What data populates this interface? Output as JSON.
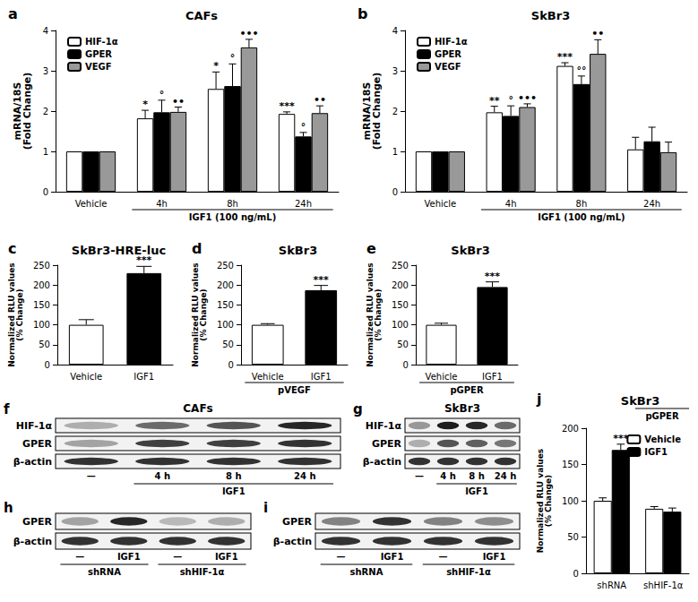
{
  "chart_data": [
    {
      "panel": "a",
      "type": "bar",
      "title": "CAFs",
      "y_label": "mRNA/18S\n(Fold Change)",
      "categories": [
        "Vehicle",
        "4h",
        "8h",
        "24h"
      ],
      "annotations": [
        {
          "text": "IGF1 (100 ng/mL)",
          "from": "4h",
          "to": "24h"
        }
      ],
      "series": [
        {
          "name": "HIF-1α",
          "color": "#ffffff",
          "values": [
            1,
            1.82,
            2.55,
            1.93
          ],
          "errors": [
            0,
            0.2,
            0.42,
            0.05
          ],
          "significance": [
            null,
            "*",
            "*",
            "***"
          ]
        },
        {
          "name": "GPER",
          "color": "#000000",
          "values": [
            1,
            1.97,
            2.62,
            1.37
          ],
          "errors": [
            0,
            0.3,
            0.55,
            0.1
          ],
          "significance": [
            null,
            "°",
            "°",
            "°"
          ]
        },
        {
          "name": "VEGF",
          "color": "#999999",
          "values": [
            1,
            1.98,
            3.58,
            1.95
          ],
          "errors": [
            0,
            0.12,
            0.2,
            0.18
          ],
          "significance": [
            null,
            "••",
            "•••",
            "••"
          ]
        }
      ],
      "ylim": [
        0,
        4
      ],
      "yticks": [
        0,
        1,
        2,
        3,
        4
      ],
      "grid": false,
      "legend": "top-left"
    },
    {
      "panel": "b",
      "type": "bar",
      "title": "SkBr3",
      "y_label": "mRNA/18S\n(Fold Change)",
      "categories": [
        "Vehicle",
        "4h",
        "8h",
        "24h"
      ],
      "annotations": [
        {
          "text": "IGF1 (100 ng/mL)",
          "from": "4h",
          "to": "24h"
        }
      ],
      "series": [
        {
          "name": "HIF-1α",
          "color": "#ffffff",
          "values": [
            1,
            1.97,
            3.12,
            1.05
          ],
          "errors": [
            0,
            0.15,
            0.08,
            0.3
          ],
          "significance": [
            null,
            "**",
            "***",
            null
          ]
        },
        {
          "name": "GPER",
          "color": "#000000",
          "values": [
            1,
            1.88,
            2.67,
            1.25
          ],
          "errors": [
            0,
            0.25,
            0.2,
            0.35
          ],
          "significance": [
            null,
            "°",
            "°°",
            null
          ]
        },
        {
          "name": "VEGF",
          "color": "#999999",
          "values": [
            1,
            2.1,
            3.42,
            0.98
          ],
          "errors": [
            0,
            0.08,
            0.35,
            0.25
          ],
          "significance": [
            null,
            "•••",
            "••",
            null
          ]
        }
      ],
      "ylim": [
        0,
        4
      ],
      "yticks": [
        0,
        1,
        2,
        3,
        4
      ],
      "grid": false,
      "legend": "top-left"
    },
    {
      "panel": "c",
      "type": "bar",
      "title": "SkBr3-HRE-luc",
      "y_label": "Normalized RLU values\n(% Change)",
      "categories": [
        "Vehicle",
        "IGF1"
      ],
      "values": [
        100,
        230
      ],
      "errors": [
        13,
        17
      ],
      "significance": [
        null,
        "***"
      ],
      "colors": [
        "#ffffff",
        "#000000"
      ],
      "ylim": [
        0,
        250
      ],
      "yticks": [
        0,
        50,
        100,
        150,
        200,
        250
      ],
      "grid": false
    },
    {
      "panel": "d",
      "type": "bar",
      "title": "SkBr3",
      "y_label": "Normalized RLU values\n(% Change)",
      "categories": [
        "Vehicle",
        "IGF1"
      ],
      "values": [
        100,
        187
      ],
      "errors": [
        3,
        12
      ],
      "significance": [
        null,
        "***"
      ],
      "colors": [
        "#ffffff",
        "#000000"
      ],
      "annotations": [
        {
          "text": "pVEGF",
          "from": "Vehicle",
          "to": "IGF1"
        }
      ],
      "ylim": [
        0,
        250
      ],
      "yticks": [
        0,
        50,
        100,
        150,
        200,
        250
      ],
      "grid": false
    },
    {
      "panel": "e",
      "type": "bar",
      "title": "SkBr3",
      "y_label": "Normalized RLU values\n(% Change)",
      "categories": [
        "Vehicle",
        "IGF1"
      ],
      "values": [
        100,
        195
      ],
      "errors": [
        4,
        13
      ],
      "significance": [
        null,
        "***"
      ],
      "colors": [
        "#ffffff",
        "#000000"
      ],
      "annotations": [
        {
          "text": "pGPER",
          "from": "Vehicle",
          "to": "IGF1"
        }
      ],
      "ylim": [
        0,
        250
      ],
      "yticks": [
        0,
        50,
        100,
        150,
        200,
        250
      ],
      "grid": false
    },
    {
      "panel": "j",
      "type": "bar",
      "title": "SkBr3",
      "y_label": "Normalized RLU values\n(% Change)",
      "categories": [
        "shRNA",
        "shHIF-1α"
      ],
      "annotations": [
        {
          "text": "pGPER"
        }
      ],
      "series": [
        {
          "name": "Vehicle",
          "color": "#ffffff",
          "values": [
            100,
            89
          ],
          "errors": [
            4,
            3
          ],
          "significance": [
            null,
            null
          ]
        },
        {
          "name": "IGF1",
          "color": "#000000",
          "values": [
            170,
            85
          ],
          "errors": [
            8,
            5
          ],
          "significance": [
            "***",
            null
          ]
        }
      ],
      "ylim": [
        0,
        200
      ],
      "yticks": [
        0,
        50,
        100,
        150,
        200
      ],
      "grid": false,
      "legend": "top-right"
    }
  ],
  "blots": [
    {
      "panel": "f",
      "title": "CAFs",
      "rows": [
        "HIF-1α",
        "GPER",
        "β-actin"
      ],
      "lanes": [
        "—",
        "4 h",
        "8 h",
        "24 h"
      ],
      "treatment": {
        "label": "IGF1",
        "lanes": [
          "4 h",
          "8 h",
          "24 h"
        ]
      },
      "bands": [
        [
          0.3,
          0.6,
          0.7,
          0.9
        ],
        [
          0.35,
          0.8,
          0.8,
          0.85
        ],
        [
          0.85,
          0.85,
          0.85,
          0.85
        ]
      ]
    },
    {
      "panel": "g",
      "title": "SkBr3",
      "rows": [
        "HIF-1α",
        "GPER",
        "β-actin"
      ],
      "lanes": [
        "—",
        "4 h",
        "8 h",
        "24 h"
      ],
      "treatment": {
        "label": "IGF1",
        "lanes": [
          "4 h",
          "8 h",
          "24 h"
        ]
      },
      "bands": [
        [
          0.4,
          0.95,
          0.9,
          0.6
        ],
        [
          0.3,
          0.7,
          0.65,
          0.55
        ],
        [
          0.85,
          0.85,
          0.85,
          0.85
        ]
      ]
    },
    {
      "panel": "h",
      "rows": [
        "GPER",
        "β-actin"
      ],
      "groups": [
        {
          "label": "shRNA",
          "lanes": [
            "—",
            "IGF1"
          ]
        },
        {
          "label": "shHIF-1α",
          "lanes": [
            "—",
            "IGF1"
          ]
        }
      ],
      "bands": [
        [
          0.35,
          0.9,
          0.25,
          0.3
        ],
        [
          0.85,
          0.85,
          0.85,
          0.85
        ]
      ]
    },
    {
      "panel": "i",
      "rows": [
        "GPER",
        "β-actin"
      ],
      "groups": [
        {
          "label": "shRNA",
          "lanes": [
            "—",
            "IGF1"
          ]
        },
        {
          "label": "shHIF-1α",
          "lanes": [
            "—",
            "IGF1"
          ]
        }
      ],
      "bands": [
        [
          0.5,
          0.85,
          0.5,
          0.45
        ],
        [
          0.85,
          0.85,
          0.85,
          0.85
        ]
      ]
    }
  ]
}
